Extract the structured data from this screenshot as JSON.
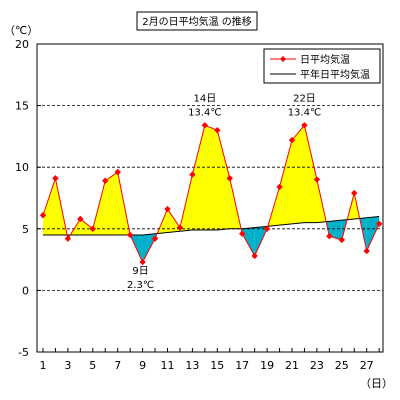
{
  "chart_data": {
    "type": "line",
    "title": "2月の日平均気温 の推移",
    "ylabel": "（℃）",
    "xlabel": "（日）",
    "ylim": [
      -5,
      20
    ],
    "yticks": [
      -5,
      0,
      5,
      10,
      15,
      20
    ],
    "xlim": [
      1,
      28
    ],
    "xticks": [
      1,
      3,
      5,
      7,
      9,
      11,
      13,
      15,
      17,
      19,
      21,
      23,
      25,
      27
    ],
    "grid": "dashed horizontal",
    "legend_position": "top-right",
    "series": [
      {
        "name": "日平均気温",
        "color": "#ff0000",
        "marker": "diamond",
        "x": [
          1,
          2,
          3,
          4,
          5,
          6,
          7,
          8,
          9,
          10,
          11,
          12,
          13,
          14,
          15,
          16,
          17,
          18,
          19,
          20,
          21,
          22,
          23,
          24,
          25,
          26,
          27,
          28
        ],
        "values": [
          6.1,
          9.1,
          4.2,
          5.8,
          5.0,
          8.9,
          9.6,
          4.5,
          2.3,
          4.2,
          6.6,
          5.1,
          9.4,
          13.4,
          13.0,
          9.1,
          4.6,
          2.8,
          5.0,
          8.4,
          12.2,
          13.4,
          9.0,
          4.4,
          4.1,
          7.9,
          3.2,
          5.4
        ]
      },
      {
        "name": "平年日平均気温",
        "color": "#000000",
        "x": [
          1,
          2,
          3,
          4,
          5,
          6,
          7,
          8,
          9,
          10,
          11,
          12,
          13,
          14,
          15,
          16,
          17,
          18,
          19,
          20,
          21,
          22,
          23,
          24,
          25,
          26,
          27,
          28
        ],
        "values": [
          4.5,
          4.5,
          4.5,
          4.5,
          4.5,
          4.5,
          4.5,
          4.5,
          4.5,
          4.6,
          4.7,
          4.8,
          4.9,
          4.9,
          4.9,
          5.0,
          5.0,
          5.1,
          5.2,
          5.3,
          5.4,
          5.5,
          5.5,
          5.6,
          5.7,
          5.8,
          5.9,
          6.0
        ]
      }
    ],
    "fill_above_color": "#ffff00",
    "fill_below_color": "#00b0c8",
    "annotations": [
      {
        "day_label": "14日",
        "value_label": "13.4℃",
        "x": 14,
        "y": 13.4,
        "anchor": "above"
      },
      {
        "day_label": "22日",
        "value_label": "13.4℃",
        "x": 22,
        "y": 13.4,
        "anchor": "above"
      },
      {
        "day_label": "9日",
        "value_label": "2.3℃",
        "x": 9,
        "y": 2.3,
        "anchor": "below"
      }
    ]
  }
}
